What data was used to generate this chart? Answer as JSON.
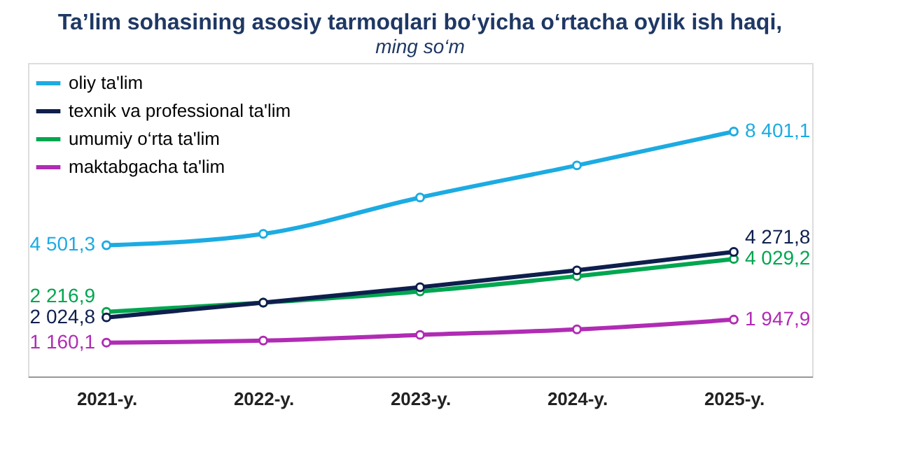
{
  "chart_data": {
    "type": "line",
    "title": "Ta’lim sohasining asosiy tarmoqlari bo‘yicha o‘rtacha oylik ish haqi,",
    "subtitle": "ming so‘m",
    "categories": [
      "2021-y.",
      "2022-y.",
      "2023-y.",
      "2024-y.",
      "2025-y."
    ],
    "series": [
      {
        "name": "oliy ta'lim",
        "color": "#1cabe2",
        "values": [
          4501.3,
          4890,
          6140,
          7240,
          8401.1
        ],
        "value_labels": [
          "4 501,3",
          null,
          null,
          null,
          "8 401,1"
        ]
      },
      {
        "name": "texnik va professional ta'lim",
        "color": "#0e1f4d",
        "values": [
          2024.8,
          2530,
          3060,
          3640,
          4271.8
        ],
        "value_labels": [
          "2 024,8",
          null,
          null,
          null,
          "4 271,8"
        ]
      },
      {
        "name": "umumiy o‘rta ta'lim",
        "color": "#00a650",
        "values": [
          2216.9,
          2530,
          2915,
          3440,
          4029.2
        ],
        "value_labels": [
          "2 216,9",
          null,
          null,
          null,
          "4 029,2"
        ]
      },
      {
        "name": "maktabgacha ta'lim",
        "color": "#b02cb4",
        "values": [
          1160.1,
          1230,
          1425,
          1615,
          1947.9
        ],
        "value_labels": [
          "1 160,1",
          null,
          null,
          null,
          "1 947,9"
        ]
      }
    ],
    "marker": "circle",
    "line_style": "solid",
    "legend": "top left",
    "grid": false,
    "tick_labels": "x"
  }
}
